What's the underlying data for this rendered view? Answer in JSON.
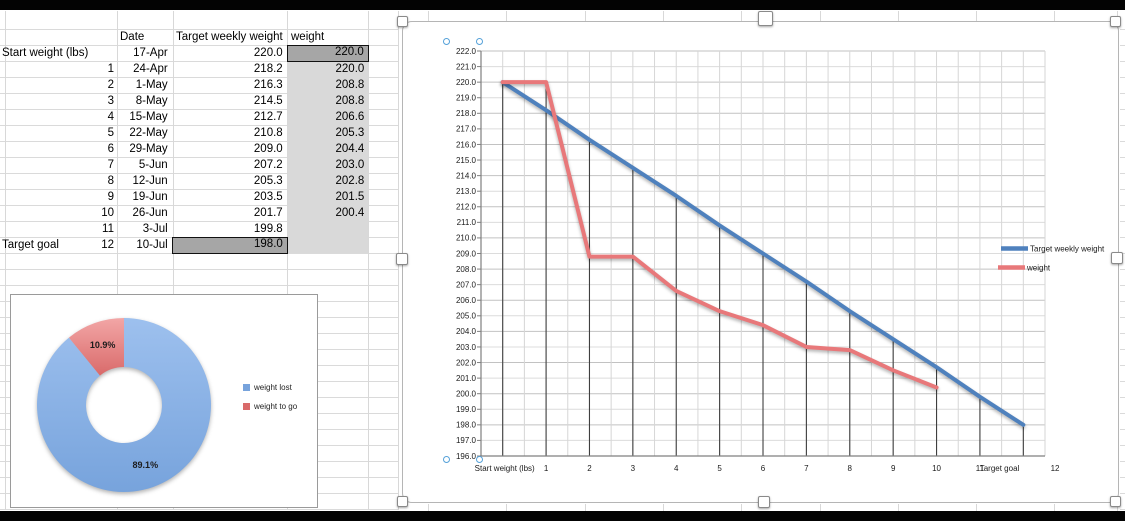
{
  "app": {
    "kind": "spreadsheet with weight tracking table and charts"
  },
  "table": {
    "headers": {
      "date": "Date",
      "target": "Target weekly weight",
      "weight": "weight"
    },
    "rows": [
      {
        "label": "Start weight (lbs)",
        "num": "",
        "date": "17-Apr",
        "target": "220.0",
        "weight": "220.0",
        "weight_selected": true
      },
      {
        "label": "",
        "num": "1",
        "date": "24-Apr",
        "target": "218.2",
        "weight": "220.0"
      },
      {
        "label": "",
        "num": "2",
        "date": "1-May",
        "target": "216.3",
        "weight": "208.8"
      },
      {
        "label": "",
        "num": "3",
        "date": "8-May",
        "target": "214.5",
        "weight": "208.8"
      },
      {
        "label": "",
        "num": "4",
        "date": "15-May",
        "target": "212.7",
        "weight": "206.6"
      },
      {
        "label": "",
        "num": "5",
        "date": "22-May",
        "target": "210.8",
        "weight": "205.3"
      },
      {
        "label": "",
        "num": "6",
        "date": "29-May",
        "target": "209.0",
        "weight": "204.4"
      },
      {
        "label": "",
        "num": "7",
        "date": "5-Jun",
        "target": "207.2",
        "weight": "203.0"
      },
      {
        "label": "",
        "num": "8",
        "date": "12-Jun",
        "target": "205.3",
        "weight": "202.8"
      },
      {
        "label": "",
        "num": "9",
        "date": "19-Jun",
        "target": "203.5",
        "weight": "201.5"
      },
      {
        "label": "",
        "num": "10",
        "date": "26-Jun",
        "target": "201.7",
        "weight": "200.4"
      },
      {
        "label": "",
        "num": "11",
        "date": "3-Jul",
        "target": "199.8",
        "weight": ""
      },
      {
        "label": "Target goal",
        "num": "12",
        "date": "10-Jul",
        "target": "198.0",
        "weight": "",
        "target_selected": true
      }
    ]
  },
  "chart_data": [
    {
      "type": "pie",
      "subtype": "donut",
      "labels": [
        "weight lost",
        "weight to go"
      ],
      "values": [
        89.1,
        10.9
      ],
      "value_labels": [
        "89.1%",
        "10.9%"
      ],
      "colors_top": [
        "#9dc0ee",
        "#f2a6a6"
      ],
      "colors_bottom": [
        "#77a3dc",
        "#d96a6a"
      ],
      "legend_position": "right"
    },
    {
      "type": "line",
      "categories": [
        "Start weight (lbs)",
        "1",
        "2",
        "3",
        "4",
        "5",
        "6",
        "7",
        "8",
        "9",
        "10",
        "11",
        "Target goal"
      ],
      "trailing_axis_label": "12",
      "series": [
        {
          "name": "Target weekly weight",
          "color": "#4f81bd",
          "values": [
            220.0,
            218.2,
            216.3,
            214.5,
            212.7,
            210.8,
            209.0,
            207.2,
            205.3,
            203.5,
            201.7,
            199.8,
            198.0
          ]
        },
        {
          "name": "weight",
          "color": "#e8787a",
          "values": [
            220.0,
            220.0,
            208.8,
            208.8,
            206.6,
            205.3,
            204.4,
            203.0,
            202.8,
            201.5,
            200.4
          ]
        }
      ],
      "ylim": [
        196,
        222
      ],
      "ytick_step": 1,
      "grid": true,
      "drop_lines": true,
      "legend_position": "right"
    }
  ]
}
